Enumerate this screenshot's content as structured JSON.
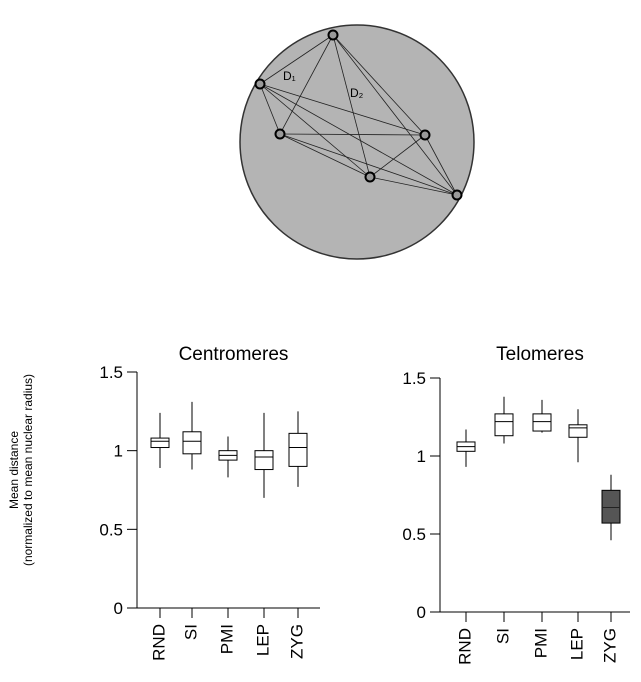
{
  "diagram": {
    "labels": [
      "D₁",
      "D₂"
    ]
  },
  "chart_data": [
    {
      "type": "box",
      "title": "Centromeres",
      "ylabel": [
        "Mean distance",
        "(normalized to mean nuclear radius)"
      ],
      "categories": [
        "RND",
        "SI",
        "PMI",
        "LEP",
        "ZYG"
      ],
      "values": [
        {
          "min": 0.89,
          "q1": 1.02,
          "median": 1.06,
          "q3": 1.08,
          "max": 1.24
        },
        {
          "min": 0.88,
          "q1": 0.98,
          "median": 1.06,
          "q3": 1.12,
          "max": 1.31
        },
        {
          "min": 0.83,
          "q1": 0.94,
          "median": 0.97,
          "q3": 1.0,
          "max": 1.09
        },
        {
          "min": 0.7,
          "q1": 0.88,
          "median": 0.96,
          "q3": 1.0,
          "max": 1.24
        },
        {
          "min": 0.77,
          "q1": 0.9,
          "median": 1.02,
          "q3": 1.11,
          "max": 1.25
        }
      ],
      "colors": [
        "#ffffff",
        "#ffffff",
        "#ffffff",
        "#ffffff",
        "#ffffff"
      ],
      "ylim": [
        0,
        1.5
      ],
      "yticks": [
        0,
        0.5,
        1,
        1.5
      ]
    },
    {
      "type": "box",
      "title": "Telomeres",
      "categories": [
        "RND",
        "SI",
        "PMI",
        "LEP",
        "ZYG"
      ],
      "values": [
        {
          "min": 0.93,
          "q1": 1.03,
          "median": 1.06,
          "q3": 1.09,
          "max": 1.17
        },
        {
          "min": 1.08,
          "q1": 1.13,
          "median": 1.22,
          "q3": 1.27,
          "max": 1.38
        },
        {
          "min": 1.15,
          "q1": 1.16,
          "median": 1.22,
          "q3": 1.27,
          "max": 1.36
        },
        {
          "min": 0.96,
          "q1": 1.12,
          "median": 1.18,
          "q3": 1.2,
          "max": 1.3
        },
        {
          "min": 0.46,
          "q1": 0.57,
          "median": 0.67,
          "q3": 0.78,
          "max": 0.88
        }
      ],
      "colors": [
        "#ffffff",
        "#ffffff",
        "#ffffff",
        "#ffffff",
        "#555555"
      ],
      "ylim": [
        0,
        1.5
      ],
      "yticks": [
        0,
        0.5,
        1,
        1.5
      ]
    }
  ]
}
